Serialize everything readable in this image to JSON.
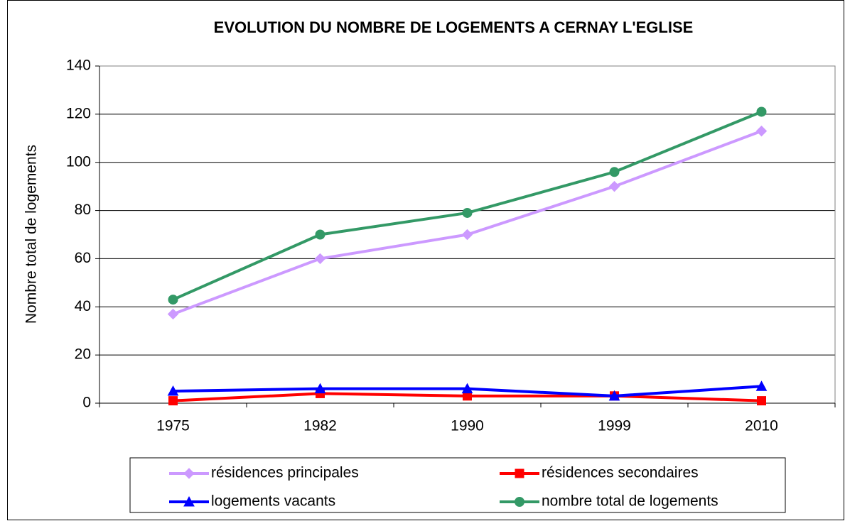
{
  "chart_data": {
    "type": "line",
    "title": "EVOLUTION DU NOMBRE DE LOGEMENTS A CERNAY L'EGLISE",
    "y_label": "Nombre total de logements",
    "categories": [
      "1975",
      "1982",
      "1990",
      "1999",
      "2010"
    ],
    "series": [
      {
        "name": "résidences principales",
        "color": "#cc99ff",
        "marker": "diamond",
        "values": [
          37,
          60,
          70,
          90,
          113
        ]
      },
      {
        "name": "résidences secondaires",
        "color": "#ff0000",
        "marker": "square",
        "values": [
          1,
          4,
          3,
          3,
          1
        ]
      },
      {
        "name": "logements vacants",
        "color": "#0000ff",
        "marker": "triangle",
        "values": [
          5,
          6,
          6,
          3,
          7
        ]
      },
      {
        "name": "nombre total de logements",
        "color": "#339966",
        "marker": "circle",
        "values": [
          43,
          70,
          79,
          96,
          121
        ]
      }
    ],
    "ylim": [
      0,
      140
    ],
    "yticks": [
      0,
      20,
      40,
      60,
      80,
      100,
      120,
      140
    ],
    "grid": true,
    "legend": "bottom"
  }
}
